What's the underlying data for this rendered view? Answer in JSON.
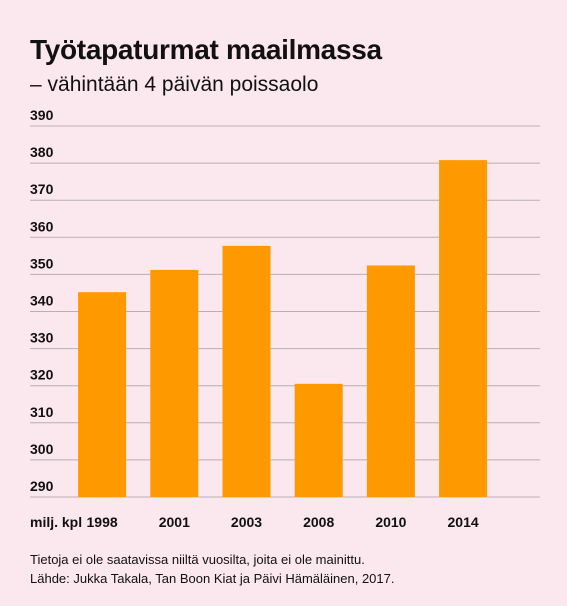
{
  "header": {
    "title": "Työtapaturmat maailmassa",
    "subtitle": "– vähintään 4 päivän poissaolo"
  },
  "colors": {
    "background": "#fbe7ee",
    "bar": "#ff9900",
    "grid": "#b8b0b3",
    "text": "#111111"
  },
  "chart_data": {
    "type": "bar",
    "title": "Työtapaturmat maailmassa",
    "subtitle": "– vähintään 4 päivän poissaolo",
    "categories": [
      "1998",
      "2001",
      "2003",
      "2008",
      "2010",
      "2014"
    ],
    "values": [
      345.2,
      351.2,
      357.7,
      320.5,
      352.4,
      380.8
    ],
    "unit_label": "milj. kpl",
    "ylim": [
      290,
      390
    ],
    "yticks": [
      290,
      300,
      310,
      320,
      330,
      340,
      350,
      360,
      370,
      380,
      390
    ],
    "grid": true,
    "legend": "none"
  },
  "footer": {
    "note": "Tietoja ei ole saatavissa niiltä vuosilta, joita ei ole mainittu.",
    "source": "Lähde: Jukka Takala, Tan Boon Kiat ja Päivi Hämäläinen, 2017."
  }
}
